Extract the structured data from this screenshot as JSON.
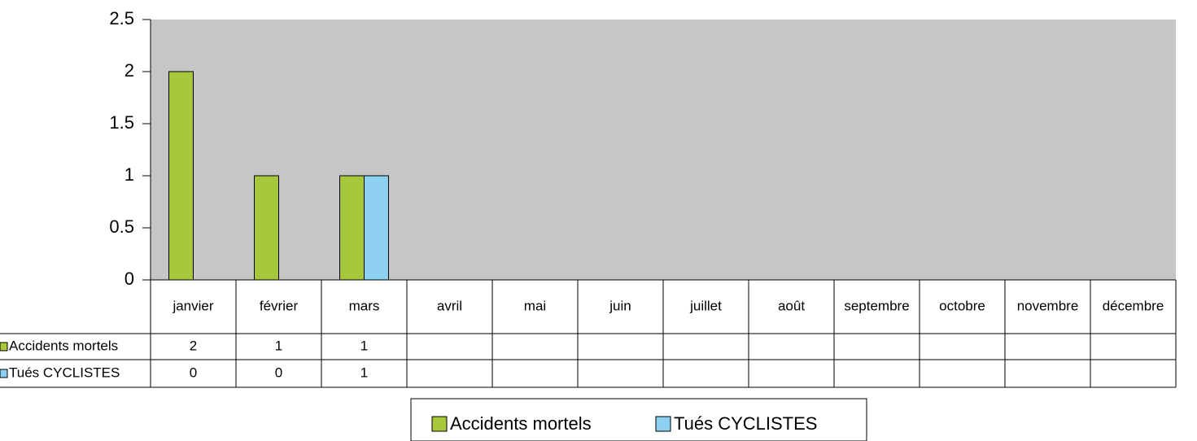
{
  "chart_data": {
    "type": "bar",
    "categories": [
      "janvier",
      "février",
      "mars",
      "avril",
      "mai",
      "juin",
      "juillet",
      "août",
      "septembre",
      "octobre",
      "novembre",
      "décembre"
    ],
    "series": [
      {
        "name": "Accidents mortels",
        "color": "#a8c83c",
        "values": [
          2,
          1,
          1,
          null,
          null,
          null,
          null,
          null,
          null,
          null,
          null,
          null
        ]
      },
      {
        "name": "Tués CYCLISTES",
        "color": "#8ed0ef",
        "values": [
          0,
          0,
          1,
          null,
          null,
          null,
          null,
          null,
          null,
          null,
          null,
          null
        ]
      }
    ],
    "ylim": [
      0,
      2.5
    ],
    "yticks": [
      0,
      0.5,
      1,
      1.5,
      2,
      2.5
    ],
    "plot_background": "#c5c6c8",
    "data_table": true,
    "legend": "bottom"
  }
}
